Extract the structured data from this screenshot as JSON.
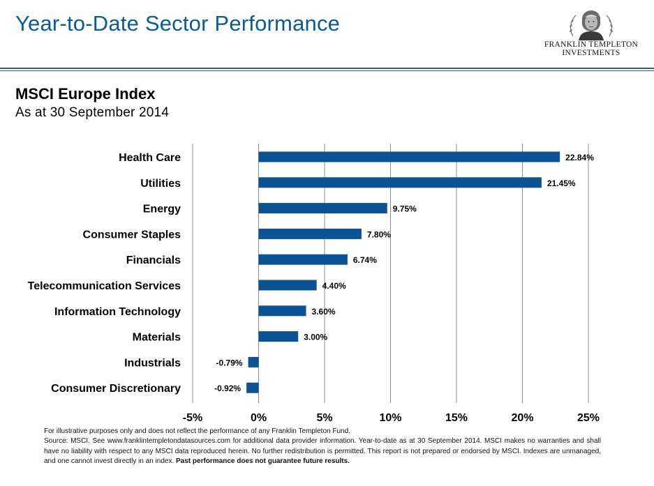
{
  "header": {
    "title": "Year-to-Date Sector Performance",
    "logo_line1": "FRANKLIN TEMPLETON",
    "logo_line2": "INVESTMENTS"
  },
  "subtitle": "MSCI Europe Index",
  "date": "As at 30 September 2014",
  "colors": {
    "title": "#0a5a9c",
    "bar": "#0b5395",
    "rule": "#2e5f8a",
    "grid": "#8c8c8c"
  },
  "chart_data": {
    "type": "bar",
    "orientation": "horizontal",
    "categories": [
      "Health Care",
      "Utilities",
      "Energy",
      "Consumer Staples",
      "Financials",
      "Telecommunication Services",
      "Information Technology",
      "Materials",
      "Industrials",
      "Consumer Discretionary"
    ],
    "values": [
      22.84,
      21.45,
      9.75,
      7.8,
      6.74,
      4.4,
      3.6,
      3.0,
      -0.79,
      -0.92
    ],
    "value_labels": [
      "22.84%",
      "21.45%",
      "9.75%",
      "7.80%",
      "6.74%",
      "4.40%",
      "3.60%",
      "3.00%",
      "-0.79%",
      "-0.92%"
    ],
    "x_ticks": [
      -5,
      0,
      5,
      10,
      15,
      20,
      25
    ],
    "x_tick_labels": [
      "-5%",
      "0%",
      "5%",
      "10%",
      "15%",
      "20%",
      "25%"
    ],
    "xlim": [
      -5,
      25
    ],
    "grid": "vertical",
    "legend": "none"
  },
  "footnote": {
    "line1": "For illustrative purposes only and does not reflect the performance of any Franklin Templeton Fund.",
    "body": "Source: MSCI. See www.franklintempletondatasources.com for additional data provider information. Year-to-date as at 30 September 2014. MSCI makes no warranties and shall have no liability with respect to any MSCI data reproduced herein. No further redistribution is permitted. This report is not prepared or endorsed by MSCI. Indexes are unmanaged, and one cannot invest directly in an index.",
    "emphasis": "Past performance does not guarantee future results."
  }
}
